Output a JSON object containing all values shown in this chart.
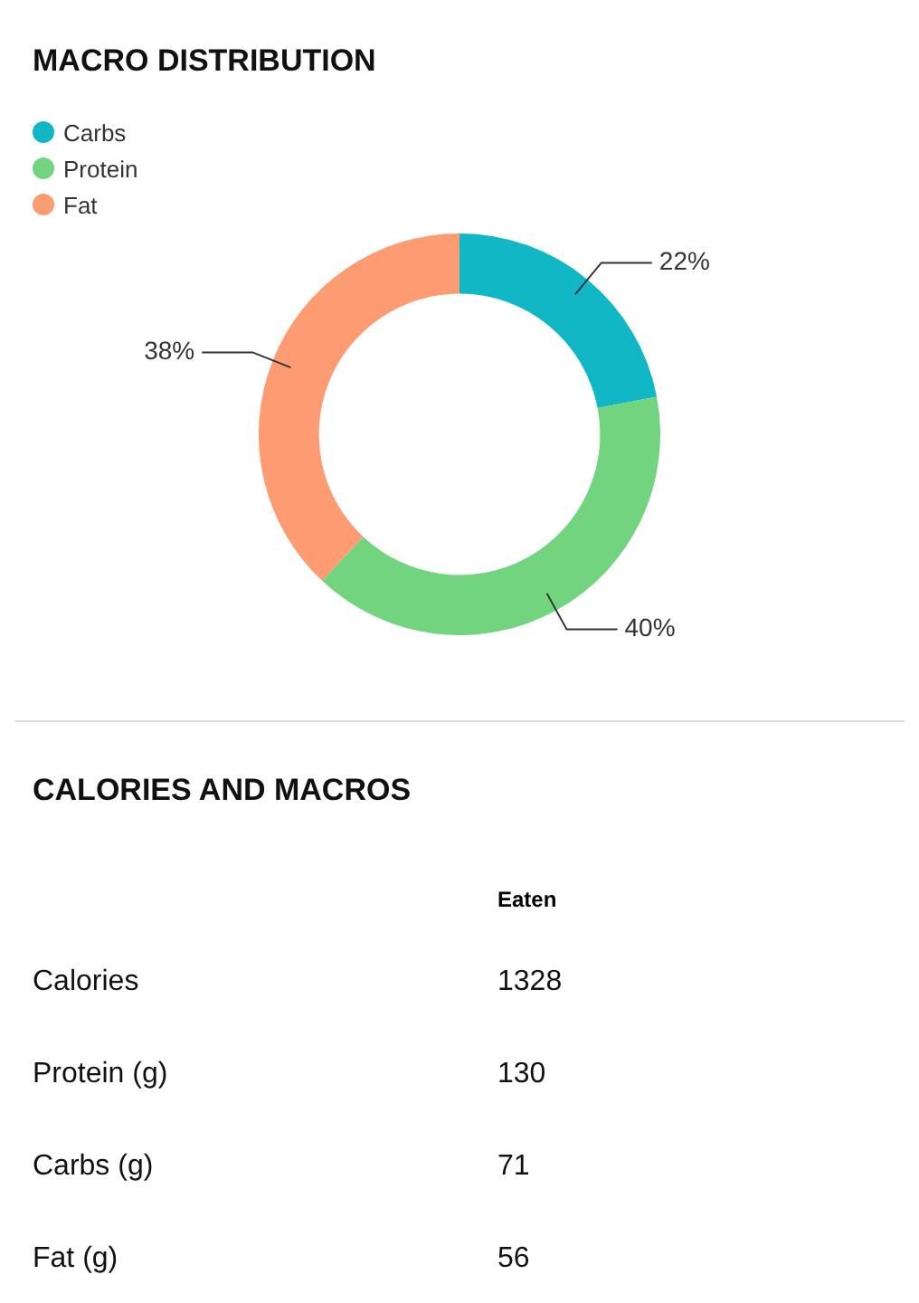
{
  "chart_data": [
    {
      "type": "donut",
      "title": "MACRO DISTRIBUTION",
      "categories": [
        "Carbs",
        "Protein",
        "Fat"
      ],
      "values": [
        22,
        40,
        38
      ],
      "colors": [
        "#12b7c5",
        "#72d47f",
        "#fd9b72"
      ],
      "value_labels": [
        "22%",
        "40%",
        "38%"
      ],
      "legend": "top left"
    },
    {
      "type": "other",
      "title": "CALORIES AND MACROS",
      "data_labels": true,
      "categories": [
        "Calories",
        "Protein (g)",
        "Carbs (g)",
        "Fat (g)"
      ],
      "series": [
        {
          "name": "Eaten",
          "values": [
            1328,
            130,
            71,
            56
          ]
        }
      ]
    }
  ]
}
